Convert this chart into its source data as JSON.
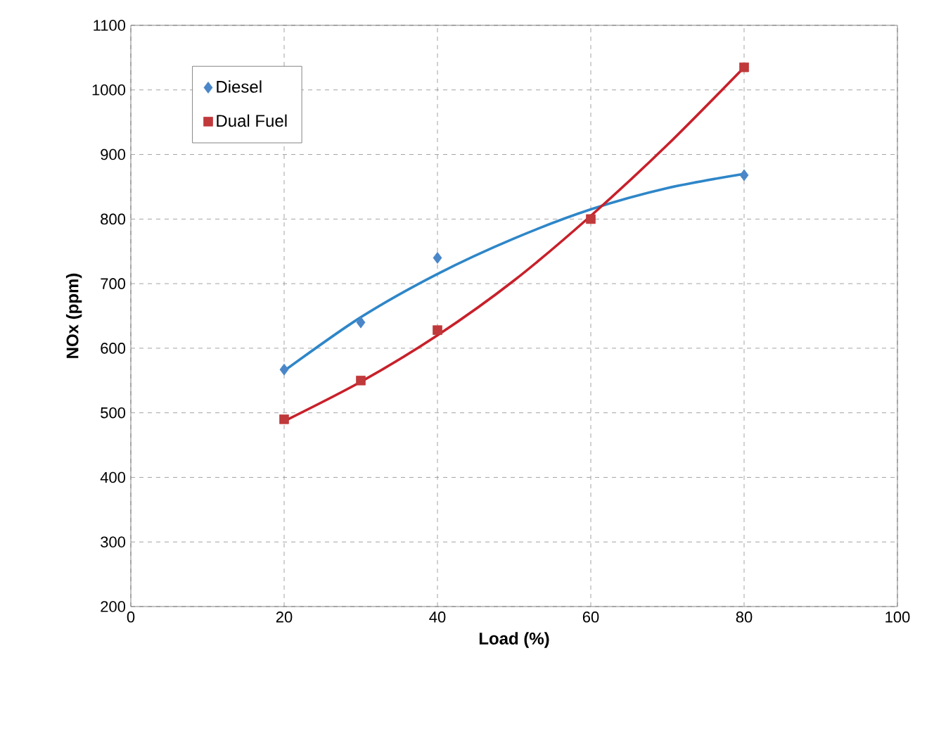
{
  "chart_data": {
    "type": "scatter",
    "xlabel": "Load (%)",
    "ylabel": "NOx (ppm)",
    "xlim": [
      0,
      100
    ],
    "xticks": [
      0,
      20,
      40,
      60,
      80,
      100
    ],
    "ylim": [
      200,
      1100
    ],
    "yticks": [
      200,
      300,
      400,
      500,
      600,
      700,
      800,
      900,
      1000,
      1100
    ],
    "grid": true,
    "legend": "top left",
    "series": [
      {
        "name": "Diesel",
        "marker": "diamond",
        "color": "#4a86c8",
        "x": [
          20,
          30,
          40,
          80
        ],
        "values": [
          567,
          640,
          740,
          868
        ]
      },
      {
        "name": "Dual Fuel",
        "marker": "square",
        "color": "#c0393b",
        "x": [
          20,
          30,
          40,
          60,
          80
        ],
        "values": [
          490,
          550,
          628,
          800,
          1035
        ]
      },
      {
        "type": "line",
        "marker": "none",
        "color": "#2e86c8",
        "x": [
          20,
          30,
          40,
          50,
          60,
          70,
          80
        ],
        "values": [
          565,
          648,
          715,
          770,
          815,
          848,
          870
        ]
      },
      {
        "type": "line",
        "marker": "none",
        "color": "#c8202a",
        "x": [
          20,
          30,
          40,
          50,
          60,
          70,
          80
        ],
        "values": [
          487,
          548,
          620,
          705,
          805,
          915,
          1035
        ]
      }
    ]
  }
}
